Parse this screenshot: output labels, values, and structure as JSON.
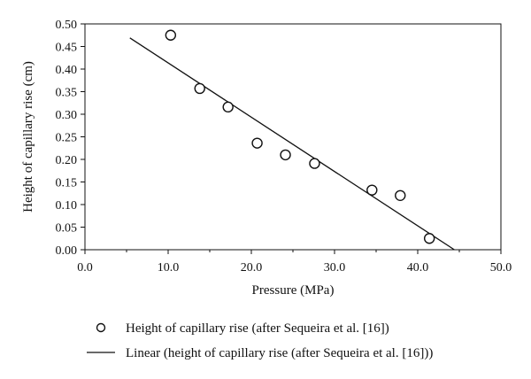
{
  "chart_data": {
    "type": "scatter",
    "xlabel": "Pressure (MPa)",
    "ylabel": "Height of capillary rise (cm)",
    "xlim": [
      0,
      50
    ],
    "ylim": [
      0,
      0.5
    ],
    "x_ticks": [
      "0.0",
      "10.0",
      "20.0",
      "30.0",
      "40.0",
      "50.0"
    ],
    "y_ticks": [
      "0.00",
      "0.05",
      "0.10",
      "0.15",
      "0.20",
      "0.25",
      "0.30",
      "0.35",
      "0.40",
      "0.45",
      "0.50"
    ],
    "grid": false,
    "legend_position": "bottom",
    "series": [
      {
        "name": "Height of capillary rise (after Sequeira et al. [16])",
        "kind": "scatter",
        "marker": "open-circle",
        "points": [
          {
            "x": 10.3,
            "y": 0.475
          },
          {
            "x": 13.8,
            "y": 0.357
          },
          {
            "x": 17.2,
            "y": 0.316
          },
          {
            "x": 20.7,
            "y": 0.236
          },
          {
            "x": 24.1,
            "y": 0.21
          },
          {
            "x": 27.6,
            "y": 0.191
          },
          {
            "x": 34.5,
            "y": 0.132
          },
          {
            "x": 37.9,
            "y": 0.12
          },
          {
            "x": 41.4,
            "y": 0.025
          }
        ]
      },
      {
        "name": "Linear (height of capillary rise (after Sequeira et al. [16]))",
        "kind": "line",
        "x": [
          5.4,
          44.4
        ],
        "y": [
          0.469,
          0.0
        ]
      }
    ]
  }
}
